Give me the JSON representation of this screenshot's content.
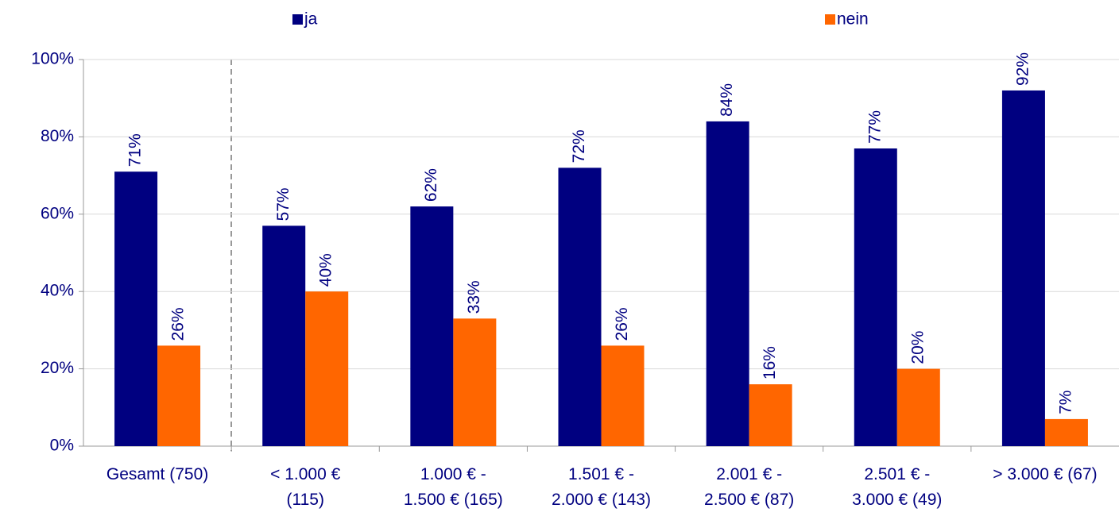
{
  "chart_data": {
    "type": "bar",
    "categories": [
      [
        "Gesamt (750)"
      ],
      [
        "< 1.000 €",
        "(115)"
      ],
      [
        "1.000 € -",
        "1.500 € (165)"
      ],
      [
        "1.501 € -",
        "2.000 € (143)"
      ],
      [
        "2.001 € -",
        "2.500 € (87)"
      ],
      [
        "2.501 € -",
        "3.000 € (49)"
      ],
      [
        "> 3.000 € (67)"
      ]
    ],
    "series": [
      {
        "name": "ja",
        "color": "#000080",
        "values": [
          71,
          57,
          62,
          72,
          84,
          77,
          92
        ],
        "value_labels": [
          "71%",
          "57%",
          "62%",
          "72%",
          "84%",
          "77%",
          "92%"
        ]
      },
      {
        "name": "nein",
        "color": "#ff6600",
        "values": [
          26,
          40,
          33,
          26,
          16,
          20,
          7
        ],
        "value_labels": [
          "26%",
          "40%",
          "33%",
          "26%",
          "16%",
          "20%",
          "7%"
        ]
      }
    ],
    "ylim": [
      0,
      100
    ],
    "yticks": [
      {
        "value": 0,
        "label": "0%"
      },
      {
        "value": 20,
        "label": "20%"
      },
      {
        "value": 40,
        "label": "40%"
      },
      {
        "value": 60,
        "label": "60%"
      },
      {
        "value": 80,
        "label": "80%"
      },
      {
        "value": 100,
        "label": "100%"
      }
    ],
    "grid": true
  }
}
